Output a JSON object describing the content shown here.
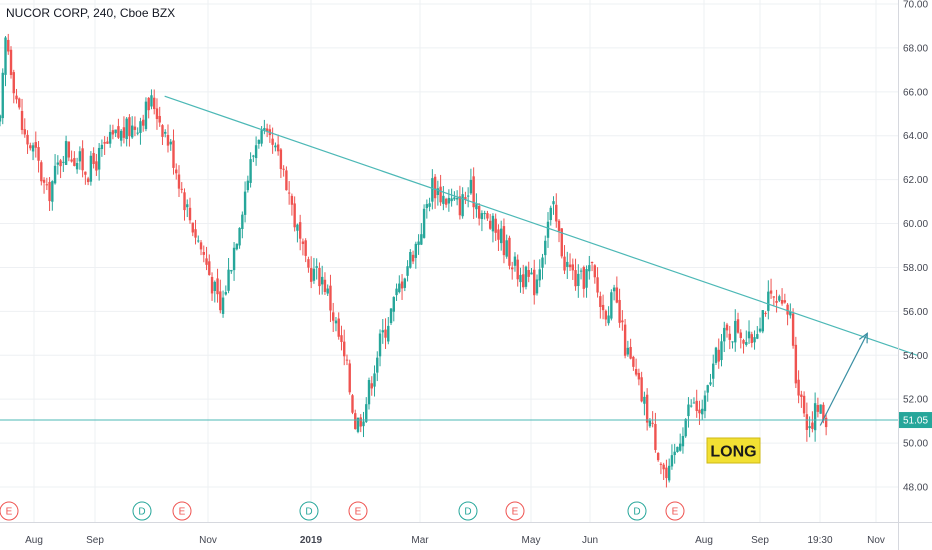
{
  "chart_data": {
    "type": "candlestick",
    "title": "NUCOR CORP, 240, Cboe BZX",
    "ylim": [
      46.5,
      70.2
    ],
    "y_ticks": [
      48.0,
      50.0,
      52.0,
      54.0,
      56.0,
      58.0,
      60.0,
      62.0,
      64.0,
      66.0,
      68.0,
      70.0
    ],
    "x_ticks": [
      "Aug",
      "Sep",
      "Nov",
      "2019",
      "Mar",
      "May",
      "Jun",
      "Aug",
      "Sep",
      "19:30",
      "Nov"
    ],
    "current_price": "51.05",
    "price_path": [
      [
        0,
        64.5
      ],
      [
        0.1,
        68.6
      ],
      [
        0.25,
        66.2
      ],
      [
        0.4,
        64.0
      ],
      [
        0.6,
        63.2
      ],
      [
        0.8,
        61.2
      ],
      [
        1.1,
        63.5
      ],
      [
        1.5,
        62.4
      ],
      [
        1.9,
        63.8
      ],
      [
        2.3,
        64.5
      ],
      [
        2.6,
        65.6
      ],
      [
        2.9,
        63.5
      ],
      [
        3.2,
        60.5
      ],
      [
        3.5,
        58.3
      ],
      [
        3.75,
        56.0
      ],
      [
        4.0,
        59.2
      ],
      [
        4.2,
        62.0
      ],
      [
        4.4,
        64.2
      ],
      [
        4.65,
        63.3
      ],
      [
        4.85,
        62.3
      ],
      [
        5.0,
        60.3
      ],
      [
        5.2,
        58.0
      ],
      [
        5.5,
        57.5
      ],
      [
        5.7,
        55.5
      ],
      [
        5.9,
        53.3
      ],
      [
        6.05,
        50.8
      ],
      [
        6.2,
        51.6
      ],
      [
        6.45,
        54.5
      ],
      [
        6.65,
        56.0
      ],
      [
        6.9,
        58.0
      ],
      [
        7.1,
        59.2
      ],
      [
        7.35,
        61.8
      ],
      [
        7.55,
        61.2
      ],
      [
        7.8,
        60.8
      ],
      [
        8.0,
        61.5
      ],
      [
        8.25,
        60.2
      ],
      [
        8.5,
        59.5
      ],
      [
        8.8,
        57.8
      ],
      [
        9.1,
        57.2
      ],
      [
        9.3,
        59.9
      ],
      [
        9.4,
        60.7
      ],
      [
        9.6,
        58.3
      ],
      [
        9.85,
        57.2
      ],
      [
        10.05,
        58.0
      ],
      [
        10.25,
        56.0
      ],
      [
        10.45,
        56.6
      ],
      [
        10.65,
        54.2
      ],
      [
        10.85,
        52.6
      ],
      [
        11.05,
        51.0
      ],
      [
        11.25,
        49.2
      ],
      [
        11.35,
        48.2
      ],
      [
        11.6,
        50.7
      ],
      [
        11.75,
        51.8
      ],
      [
        11.95,
        51.3
      ],
      [
        12.1,
        53.2
      ],
      [
        12.3,
        54.8
      ],
      [
        12.55,
        55.3
      ],
      [
        12.75,
        54.5
      ],
      [
        12.9,
        55.6
      ],
      [
        13.05,
        56.5
      ],
      [
        13.25,
        56.2
      ],
      [
        13.45,
        55.8
      ],
      [
        13.55,
        52.8
      ],
      [
        13.75,
        50.8
      ],
      [
        13.9,
        51.6
      ],
      [
        14.05,
        51.05
      ]
    ],
    "trendlines": [
      {
        "from": [
          2.8,
          65.8
        ],
        "to": [
          15.6,
          54.0
        ]
      },
      {
        "type": "horizontal",
        "y": 51.05
      }
    ],
    "arrow": {
      "from": [
        13.95,
        50.8
      ],
      "to": [
        14.75,
        55.0
      ]
    },
    "annotation": "LONG",
    "events": [
      {
        "label": "E",
        "kind": "earnings"
      },
      {
        "label": "D",
        "kind": "dividend"
      },
      {
        "label": "E",
        "kind": "earnings"
      },
      {
        "label": "D",
        "kind": "dividend"
      },
      {
        "label": "E",
        "kind": "earnings"
      },
      {
        "label": "D",
        "kind": "dividend"
      },
      {
        "label": "E",
        "kind": "earnings"
      },
      {
        "label": "D",
        "kind": "dividend"
      },
      {
        "label": "E",
        "kind": "earnings"
      }
    ],
    "colors": {
      "up": "#26a69a",
      "down": "#ef5350",
      "trendline": "#4cb8b6",
      "price_tag": "#26a69a",
      "long_bg": "#f2e033",
      "earnings": "#ef5350",
      "dividend": "#26a69a",
      "grid": "#eef0f3"
    }
  }
}
